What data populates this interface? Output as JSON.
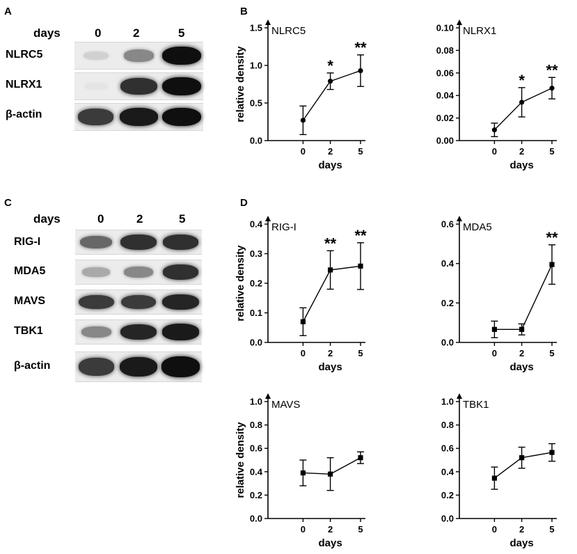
{
  "panel_letters": [
    "A",
    "B",
    "C",
    "D"
  ],
  "blot_A": {
    "header_label": "days",
    "lanes": [
      "0",
      "2",
      "5"
    ],
    "rows": [
      {
        "label": "NLRC5",
        "intensity": [
          0.12,
          0.45,
          1.0
        ]
      },
      {
        "label": "NLRX1",
        "intensity": [
          0.03,
          0.85,
          1.0
        ]
      },
      {
        "label": "β-actin",
        "intensity": [
          0.8,
          0.95,
          1.0
        ]
      }
    ]
  },
  "blot_C": {
    "header_label": "days",
    "lanes": [
      "0",
      "2",
      "5"
    ],
    "rows": [
      {
        "label": "RIG-I",
        "intensity": [
          0.6,
          0.85,
          0.85
        ]
      },
      {
        "label": "MDA5",
        "intensity": [
          0.3,
          0.45,
          0.85
        ]
      },
      {
        "label": "MAVS",
        "intensity": [
          0.8,
          0.8,
          0.9
        ]
      },
      {
        "label": "TBK1",
        "intensity": [
          0.45,
          0.9,
          0.95
        ]
      },
      {
        "label": "β-actin",
        "intensity": [
          0.8,
          0.95,
          1.0
        ]
      }
    ]
  },
  "chart_data": [
    {
      "type": "line",
      "title": "NLRC5",
      "xlabel": "days",
      "ylabel": "relative density",
      "categories": [
        "0",
        "2",
        "5"
      ],
      "values": [
        0.27,
        0.79,
        0.93
      ],
      "errors": [
        0.19,
        0.11,
        0.21
      ],
      "significance": [
        "",
        "*",
        "**"
      ],
      "ylim": [
        0,
        1.5
      ],
      "yticks": [
        "0.0",
        "0.5",
        "1.0",
        "1.5"
      ],
      "marker": "circle"
    },
    {
      "type": "line",
      "title": "NLRX1",
      "xlabel": "days",
      "ylabel": "",
      "categories": [
        "0",
        "2",
        "5"
      ],
      "values": [
        0.0095,
        0.034,
        0.0465
      ],
      "errors": [
        0.006,
        0.013,
        0.0095
      ],
      "significance": [
        "",
        "*",
        "**"
      ],
      "ylim": [
        0,
        0.1
      ],
      "yticks": [
        "0.00",
        "0.02",
        "0.04",
        "0.06",
        "0.08",
        "0.10"
      ],
      "marker": "circle"
    },
    {
      "type": "line",
      "title": "RIG-I",
      "xlabel": "days",
      "ylabel": "relative density",
      "categories": [
        "0",
        "2",
        "5"
      ],
      "values": [
        0.07,
        0.245,
        0.258
      ],
      "errors": [
        0.047,
        0.065,
        0.079
      ],
      "significance": [
        "",
        "**",
        "**"
      ],
      "ylim": [
        0,
        0.4
      ],
      "yticks": [
        "0.0",
        "0.1",
        "0.2",
        "0.3",
        "0.4"
      ],
      "marker": "square"
    },
    {
      "type": "line",
      "title": "MDA5",
      "xlabel": "days",
      "ylabel": "",
      "categories": [
        "0",
        "2",
        "5"
      ],
      "values": [
        0.066,
        0.066,
        0.395
      ],
      "errors": [
        0.042,
        0.028,
        0.1
      ],
      "significance": [
        "",
        "",
        "**"
      ],
      "ylim": [
        0,
        0.6
      ],
      "yticks": [
        "0.0",
        "0.2",
        "0.4",
        "0.6"
      ],
      "marker": "square"
    },
    {
      "type": "line",
      "title": "MAVS",
      "xlabel": "days",
      "ylabel": "relative density",
      "categories": [
        "0",
        "2",
        "5"
      ],
      "values": [
        0.39,
        0.38,
        0.52
      ],
      "errors": [
        0.11,
        0.14,
        0.05
      ],
      "significance": [
        "",
        "",
        ""
      ],
      "ylim": [
        0,
        1.0
      ],
      "yticks": [
        "0.0",
        "0.2",
        "0.4",
        "0.6",
        "0.8",
        "1.0"
      ],
      "marker": "square"
    },
    {
      "type": "line",
      "title": "TBK1",
      "xlabel": "days",
      "ylabel": "",
      "categories": [
        "0",
        "2",
        "5"
      ],
      "values": [
        0.345,
        0.52,
        0.565
      ],
      "errors": [
        0.095,
        0.09,
        0.075
      ],
      "significance": [
        "",
        "",
        ""
      ],
      "ylim": [
        0,
        1.0
      ],
      "yticks": [
        "0.0",
        "0.2",
        "0.4",
        "0.6",
        "0.8",
        "1.0"
      ],
      "marker": "square"
    }
  ]
}
